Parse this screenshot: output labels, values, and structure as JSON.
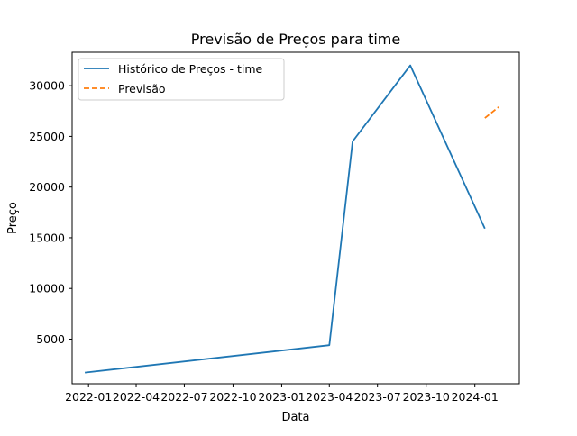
{
  "chart_data": {
    "type": "line",
    "title": "Previsão de Preços para time",
    "xlabel": "Data",
    "ylabel": "Preço",
    "x_axis_type": "date",
    "xlim": [
      "2021-12-01",
      "2024-03-25"
    ],
    "ylim": [
      600,
      33300
    ],
    "x_ticks": [
      {
        "label": "2022-01",
        "date": "2022-01-01"
      },
      {
        "label": "2022-04",
        "date": "2022-04-01"
      },
      {
        "label": "2022-07",
        "date": "2022-07-01"
      },
      {
        "label": "2022-10",
        "date": "2022-10-01"
      },
      {
        "label": "2023-01",
        "date": "2023-01-01"
      },
      {
        "label": "2023-04",
        "date": "2023-04-01"
      },
      {
        "label": "2023-07",
        "date": "2023-07-01"
      },
      {
        "label": "2023-10",
        "date": "2023-10-01"
      },
      {
        "label": "2024-01",
        "date": "2024-01-01"
      }
    ],
    "y_ticks": [
      5000,
      10000,
      15000,
      20000,
      25000,
      30000
    ],
    "grid": false,
    "legend": "upper-left",
    "series": [
      {
        "name": "Histórico de Preços - time",
        "color": "#1f77b4",
        "style": "solid",
        "points": [
          {
            "x": "2021-12-25",
            "y": 1700
          },
          {
            "x": "2023-04-01",
            "y": 4400
          },
          {
            "x": "2023-05-15",
            "y": 24500
          },
          {
            "x": "2023-09-01",
            "y": 32000
          },
          {
            "x": "2024-01-20",
            "y": 15900
          }
        ]
      },
      {
        "name": "Previsão",
        "color": "#ff7f0e",
        "style": "dashed",
        "points": [
          {
            "x": "2024-01-20",
            "y": 26800
          },
          {
            "x": "2024-02-15",
            "y": 27900
          }
        ]
      }
    ]
  }
}
